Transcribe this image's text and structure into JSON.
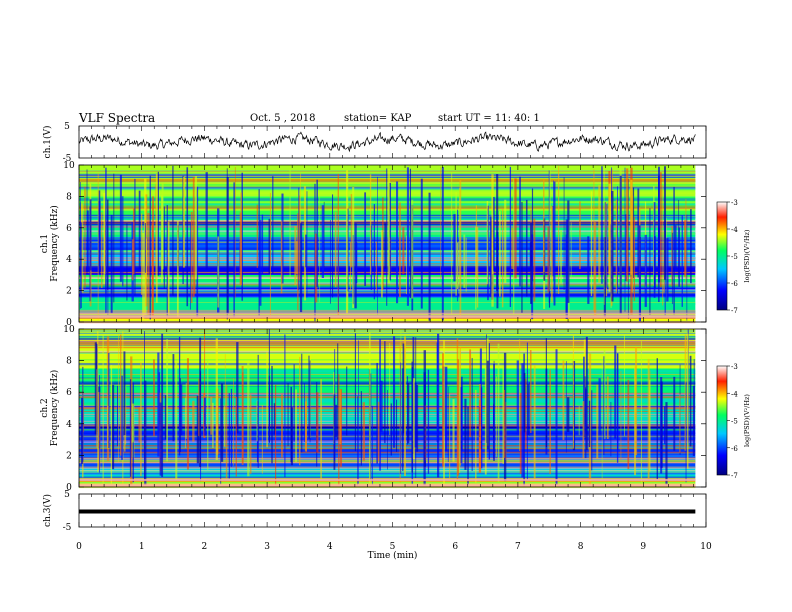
{
  "header": {
    "title": "VLF Spectra",
    "date": "Oct. 5  , 2018",
    "station": "station= KAP",
    "start_ut": "start  UT =  11: 40: 1"
  },
  "chart_data": [
    {
      "type": "line",
      "name": "ch1-waveform",
      "ylabel": "ch.1(V)",
      "ylim": [
        -5,
        5
      ],
      "yticks": [
        "5",
        "-5"
      ],
      "xlim": [
        0,
        10
      ],
      "x_end": 9.83,
      "description_values": "noisy waveform oscillating roughly between -2 and 2 V"
    },
    {
      "type": "heatmap",
      "name": "ch1-spectrogram",
      "ylabel": "ch.1\nFrequency (kHz)",
      "ylabel_lines": [
        "ch.1",
        "Frequency (kHz)"
      ],
      "ylim": [
        0,
        10
      ],
      "yticks": [
        "0",
        "2",
        "4",
        "6",
        "8",
        "10"
      ],
      "xlim": [
        0,
        10
      ],
      "x_end": 9.83,
      "colorbar": {
        "label": "log(PSD)(V²/Hz)",
        "range": [
          -7,
          -3
        ],
        "ticks": [
          "-3",
          "-4",
          "-5",
          "-6",
          "-7"
        ]
      },
      "bands": [
        {
          "from": 0.0,
          "to": 0.6,
          "level": -4.2
        },
        {
          "from": 0.6,
          "to": 1.6,
          "level": -5.0
        },
        {
          "from": 1.6,
          "to": 2.2,
          "level": -6.2
        },
        {
          "from": 2.2,
          "to": 3.0,
          "level": -4.8
        },
        {
          "from": 3.0,
          "to": 3.6,
          "level": -6.3
        },
        {
          "from": 3.6,
          "to": 4.6,
          "level": -5.5
        },
        {
          "from": 4.6,
          "to": 5.4,
          "level": -6.0
        },
        {
          "from": 5.4,
          "to": 6.6,
          "level": -5.0
        },
        {
          "from": 6.6,
          "to": 8.0,
          "level": -4.7
        },
        {
          "from": 8.0,
          "to": 10.0,
          "level": -4.4
        }
      ]
    },
    {
      "type": "heatmap",
      "name": "ch2-spectrogram",
      "ylabel": "ch.2\nFrequency (kHz)",
      "ylabel_lines": [
        "ch.2",
        "Frequency (kHz)"
      ],
      "ylim": [
        0,
        10
      ],
      "yticks": [
        "0",
        "2",
        "4",
        "6",
        "8",
        "10"
      ],
      "xlim": [
        0,
        10
      ],
      "x_end": 9.83,
      "colorbar": {
        "label": "log(PSD)(V²/Hz)",
        "range": [
          -7,
          -3
        ],
        "ticks": [
          "-3",
          "-4",
          "-5",
          "-6",
          "-7"
        ]
      },
      "bands": [
        {
          "from": 0.0,
          "to": 0.6,
          "level": -4.3
        },
        {
          "from": 0.6,
          "to": 1.2,
          "level": -5.4
        },
        {
          "from": 1.2,
          "to": 2.0,
          "level": -6.0
        },
        {
          "from": 2.0,
          "to": 3.6,
          "level": -6.1
        },
        {
          "from": 3.6,
          "to": 4.0,
          "level": -6.8
        },
        {
          "from": 4.0,
          "to": 5.6,
          "level": -5.2
        },
        {
          "from": 5.6,
          "to": 7.5,
          "level": -4.9
        },
        {
          "from": 7.5,
          "to": 10.0,
          "level": -4.3
        }
      ]
    },
    {
      "type": "line",
      "name": "ch3-waveform",
      "ylabel": "ch.3(V)",
      "ylim": [
        -5,
        5
      ],
      "yticks": [
        "5",
        "-5"
      ],
      "xlim": [
        0,
        10
      ],
      "x_end": 9.83,
      "values_constant": 0,
      "xlabel": "Time  (min)",
      "xticks": [
        "0",
        "1",
        "2",
        "3",
        "4",
        "5",
        "6",
        "7",
        "8",
        "9",
        "10"
      ]
    }
  ]
}
